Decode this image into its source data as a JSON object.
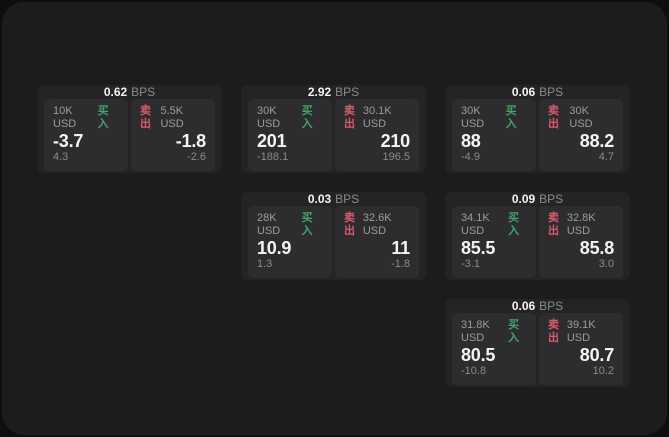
{
  "theme": {
    "page_background": "#0e0e10",
    "window_background": "#1c1c1e",
    "card_background": "#242427",
    "panel_background": "#2d2d30",
    "text_primary": "#f4f4f4",
    "text_secondary": "#9c9c9e",
    "buy_color": "#44a36c",
    "sell_color": "#d95a6e"
  },
  "labels": {
    "bps_unit": "BPS",
    "buy": "买入",
    "sell": "卖出"
  },
  "cards": [
    {
      "spread_bps": "0.62",
      "buy": {
        "amount": "10K USD",
        "price": "-3.7",
        "change": "4.3"
      },
      "sell": {
        "amount": "5.5K USD",
        "price": "-1.8",
        "change": "-2.6"
      }
    },
    {
      "spread_bps": "2.92",
      "buy": {
        "amount": "30K USD",
        "price": "201",
        "change": "-188.1"
      },
      "sell": {
        "amount": "30.1K USD",
        "price": "210",
        "change": "196.5"
      }
    },
    {
      "spread_bps": "0.06",
      "buy": {
        "amount": "30K USD",
        "price": "88",
        "change": "-4.9"
      },
      "sell": {
        "amount": "30K USD",
        "price": "88.2",
        "change": "4.7"
      }
    },
    {
      "spread_bps": "0.03",
      "buy": {
        "amount": "28K USD",
        "price": "10.9",
        "change": "1.3"
      },
      "sell": {
        "amount": "32.6K USD",
        "price": "11",
        "change": "-1.8"
      }
    },
    {
      "spread_bps": "0.09",
      "buy": {
        "amount": "34.1K USD",
        "price": "85.5",
        "change": "-3.1"
      },
      "sell": {
        "amount": "32.8K USD",
        "price": "85.8",
        "change": "3.0"
      }
    },
    {
      "spread_bps": "0.06",
      "buy": {
        "amount": "31.8K USD",
        "price": "80.5",
        "change": "-10.8"
      },
      "sell": {
        "amount": "39.1K USD",
        "price": "80.7",
        "change": "10.2"
      }
    }
  ]
}
